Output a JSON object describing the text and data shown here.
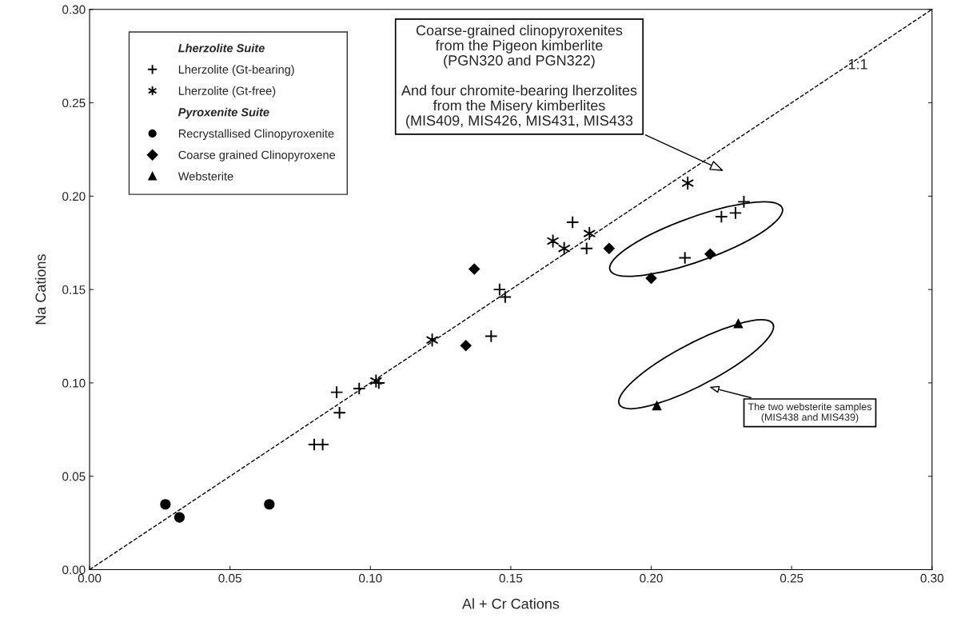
{
  "chart_data": {
    "type": "scatter",
    "xlabel": "Al + Cr Cations",
    "ylabel": "Na Cations",
    "legend_title": "Lherzolite Suite",
    "xlim": [
      0,
      0.3
    ],
    "ylim": [
      0,
      0.3
    ],
    "xticks": [
      {
        "value": 0,
        "label": "0.00"
      },
      {
        "value": 0.05,
        "label": "0.05"
      },
      {
        "value": 0.1,
        "label": "0.10"
      },
      {
        "value": 0.15,
        "label": "0.15"
      },
      {
        "value": 0.2,
        "label": "0.20"
      },
      {
        "value": 0.25,
        "label": "0.25"
      },
      {
        "value": 0.3,
        "label": "0.30"
      }
    ],
    "yticks": [
      {
        "value": 0,
        "label": "0.00"
      },
      {
        "value": 0.05,
        "label": "0.05"
      },
      {
        "value": 0.1,
        "label": "0.10"
      },
      {
        "value": 0.15,
        "label": "0.15"
      },
      {
        "value": 0.2,
        "label": "0.20"
      },
      {
        "value": 0.25,
        "label": "0.25"
      },
      {
        "value": 0.3,
        "label": "0.30"
      }
    ],
    "grid": false,
    "legend": "top left",
    "series": [
      {
        "name": "Lherzolite (Gt-bearing)",
        "color": "#000000",
        "marker": "cross",
        "x": [
          0.088,
          0.096,
          0.103,
          0.089,
          0.08,
          0.083,
          0.143,
          0.146,
          0.148,
          0.172,
          0.177,
          0.225,
          0.23,
          0.233,
          0.212
        ],
        "values": [
          0.095,
          0.097,
          0.1,
          0.084,
          0.067,
          0.067,
          0.125,
          0.15,
          0.146,
          0.186,
          0.172,
          0.189,
          0.191,
          0.197,
          0.167
        ]
      },
      {
        "name": "Lherzolite (Gt-free)",
        "color": "#000000",
        "x": [
          0.122,
          0.102,
          0.178,
          0.165,
          0.169,
          0.213
        ],
        "values": [
          0.123,
          0.101,
          0.18,
          0.176,
          0.172,
          0.207
        ]
      },
      {
        "name": "Recrystallised Clinopyroxenite",
        "color": "#000000",
        "marker": "circle",
        "x": [
          0.027,
          0.032,
          0.064
        ],
        "values": [
          0.035,
          0.028,
          0.035
        ]
      },
      {
        "name": "Coarse grained Clinopyroxene",
        "color": "#000000",
        "marker": "diamond",
        "x": [
          0.134,
          0.137,
          0.185,
          0.221,
          0.2
        ],
        "values": [
          0.12,
          0.161,
          0.172,
          0.169,
          0.156
        ]
      },
      {
        "name": "Websterite",
        "color": "#000000",
        "marker": "triangle",
        "x": [
          0.202,
          0.231
        ],
        "values": [
          0.088,
          0.132
        ]
      },
      {
        "type": "line",
        "color": "#000000",
        "line_style": "dashed",
        "marker": "none",
        "x": [
          0,
          0.3
        ],
        "values": [
          0,
          0.3
        ]
      }
    ],
    "annotations": [
      "Pyroxenite Suite",
      {
        "text": "1:1",
        "x": 0.27,
        "y": 0.27
      },
      "Coarse-grained clinopyroxenites\nfrom the Pigeon kimberlite\n(PGN320 and PGN322)\n\nAnd four chromite-bearing lherzolites\nfrom the Misery kimberlites\n(MIS409, MIS426, MIS431, MIS433",
      "The two websterite samples\n(MIS438 and MIS439)"
    ]
  }
}
